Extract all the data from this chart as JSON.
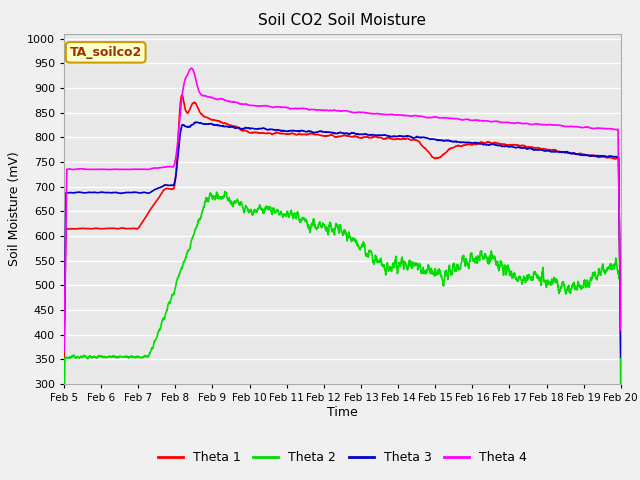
{
  "title": "Soil CO2 Soil Moisture",
  "xlabel": "Time",
  "ylabel": "Soil Moisture (mV)",
  "annotation": "TA_soilco2",
  "ylim": [
    300,
    1010
  ],
  "yticks": [
    300,
    350,
    400,
    450,
    500,
    550,
    600,
    650,
    700,
    750,
    800,
    850,
    900,
    950,
    1000
  ],
  "colors": {
    "theta1": "#ff0000",
    "theta2": "#00dd00",
    "theta3": "#0000cc",
    "theta4": "#ff00ff"
  },
  "bg_color": "#e8e8e8",
  "grid_color": "#ffffff",
  "fig_color": "#f0f0f0",
  "legend_labels": [
    "Theta 1",
    "Theta 2",
    "Theta 3",
    "Theta 4"
  ],
  "annotation_color": "#993300",
  "annotation_box_color": "#ffffcc",
  "annotation_edge_color": "#cc9900"
}
